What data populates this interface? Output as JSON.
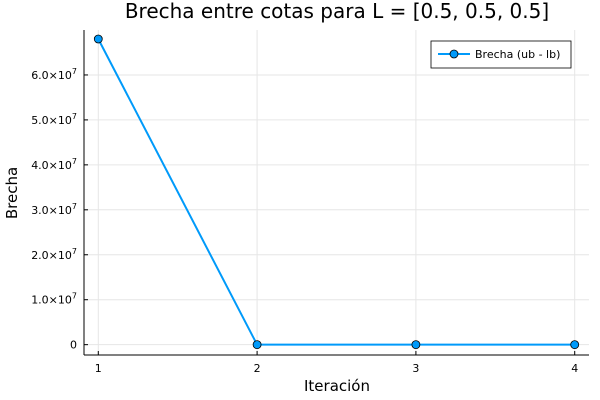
{
  "chart_data": {
    "type": "line",
    "title": "Brecha entre cotas para L = [0.5, 0.5, 0.5]",
    "xlabel": "Iteración",
    "ylabel": "Brecha",
    "x": [
      1,
      2,
      3,
      4
    ],
    "xticks": [
      "1",
      "2",
      "3",
      "4"
    ],
    "xlim": [
      0.91,
      4.09
    ],
    "ylim": [
      -2300000,
      70000000
    ],
    "yticks": [
      {
        "value": 0,
        "mantissa": "0",
        "exponent": ""
      },
      {
        "value": 10000000,
        "mantissa": "1.0×10",
        "exponent": "7"
      },
      {
        "value": 20000000,
        "mantissa": "2.0×10",
        "exponent": "7"
      },
      {
        "value": 30000000,
        "mantissa": "3.0×10",
        "exponent": "7"
      },
      {
        "value": 40000000,
        "mantissa": "4.0×10",
        "exponent": "7"
      },
      {
        "value": 50000000,
        "mantissa": "5.0×10",
        "exponent": "7"
      },
      {
        "value": 60000000,
        "mantissa": "6.0×10",
        "exponent": "7"
      }
    ],
    "grid": true,
    "legend_position": "top-right",
    "series": [
      {
        "name": "Brecha (ub - lb)",
        "values": [
          68000000,
          0,
          0,
          0
        ],
        "color": "#009AFA"
      }
    ]
  }
}
